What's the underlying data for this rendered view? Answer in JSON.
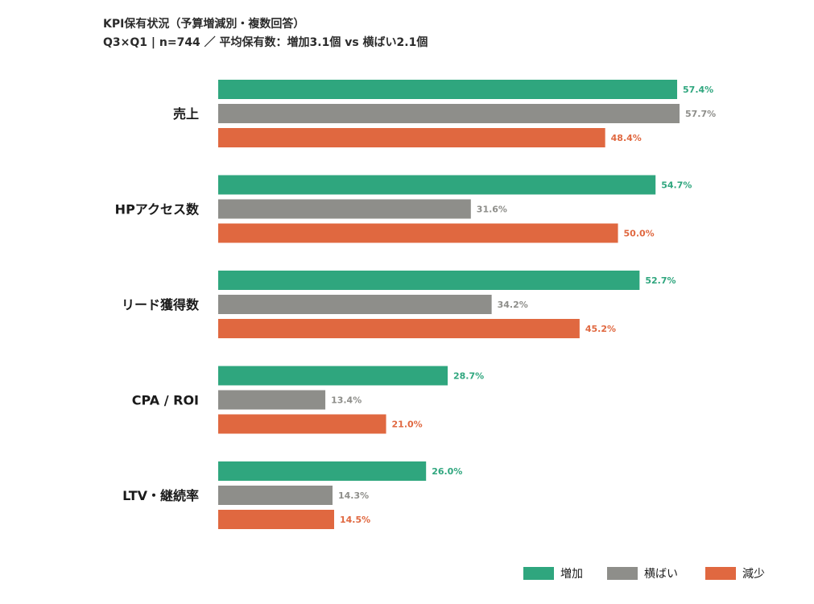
{
  "chart_data": {
    "type": "bar",
    "orientation": "horizontal",
    "title": "KPI保有状況（予算増減別・複数回答）",
    "subtitle": "Q3×Q1 | n=744 ／ 平均保有数：増加3.1個 vs 横ばい2.1個",
    "categories": [
      "売上",
      "HPアクセス数",
      "リード獲得数",
      "CPA / ROI",
      "LTV・継続率"
    ],
    "series": [
      {
        "name": "増加",
        "color": "#2fa67e",
        "values": [
          57.4,
          54.7,
          52.7,
          28.7,
          26.0
        ],
        "labels": [
          "57.4%",
          "54.7%",
          "52.7%",
          "28.7%",
          "26.0%"
        ]
      },
      {
        "name": "横ばい",
        "color": "#8e8e8a",
        "values": [
          57.7,
          31.6,
          34.2,
          13.4,
          14.3
        ],
        "labels": [
          "57.7%",
          "31.6%",
          "34.2%",
          "13.4%",
          "14.3%"
        ]
      },
      {
        "name": "減少",
        "color": "#e06840",
        "values": [
          48.4,
          50.0,
          45.2,
          21.0,
          14.5
        ],
        "labels": [
          "48.4%",
          "50.0%",
          "45.2%",
          "21.0%",
          "14.5%"
        ]
      }
    ],
    "xlim": [
      0,
      60
    ],
    "grid": false,
    "legend_position": "bottom-right"
  }
}
